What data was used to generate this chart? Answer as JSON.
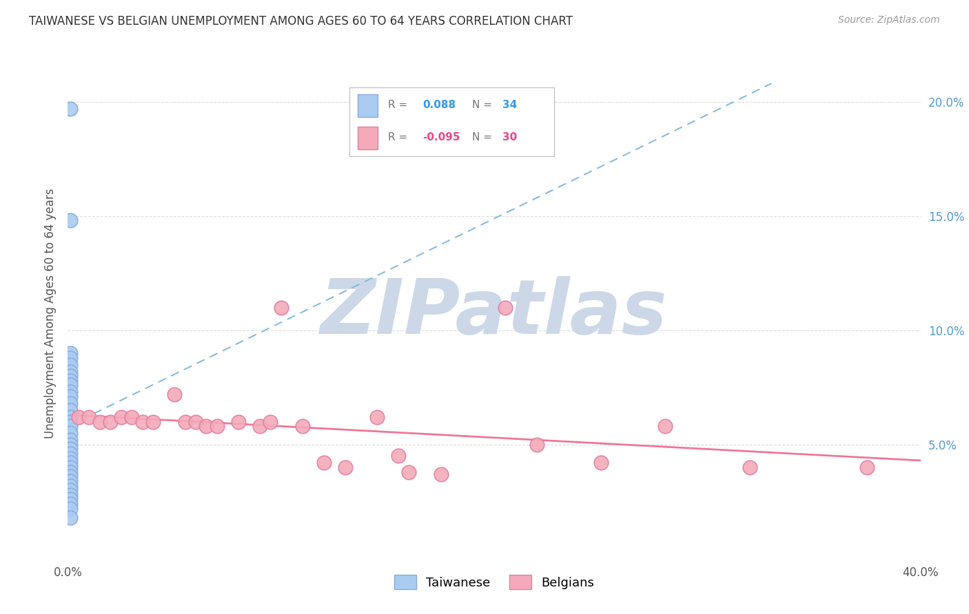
{
  "title": "TAIWANESE VS BELGIAN UNEMPLOYMENT AMONG AGES 60 TO 64 YEARS CORRELATION CHART",
  "source": "Source: ZipAtlas.com",
  "ylabel": "Unemployment Among Ages 60 to 64 years",
  "xlim": [
    0.0,
    0.4
  ],
  "ylim": [
    0.0,
    0.215
  ],
  "yticks": [
    0.0,
    0.05,
    0.1,
    0.15,
    0.2
  ],
  "ytick_labels": [
    "",
    "5.0%",
    "10.0%",
    "15.0%",
    "20.0%"
  ],
  "xticks": [
    0.0,
    0.05,
    0.1,
    0.15,
    0.2,
    0.25,
    0.3,
    0.35,
    0.4
  ],
  "xtick_labels": [
    "0.0%",
    "",
    "",
    "",
    "",
    "",
    "",
    "",
    "40.0%"
  ],
  "taiwanese_R": 0.088,
  "taiwanese_N": 34,
  "belgian_R": -0.095,
  "belgian_N": 30,
  "taiwanese_color": "#aaccf0",
  "taiwanese_edge": "#88aadd",
  "belgian_color": "#f4aabb",
  "belgian_edge": "#e080a0",
  "trend_blue_color": "#88bbdd",
  "trend_pink_color": "#ee7799",
  "background_color": "#ffffff",
  "grid_color": "#dddddd",
  "watermark_text": "ZIPatlas",
  "watermark_color": "#ccd8e8",
  "legend_R_blue": "0.088",
  "legend_N_blue": "34",
  "legend_R_pink": "-0.095",
  "legend_N_pink": "30",
  "taiwanese_x": [
    0.001,
    0.001,
    0.001,
    0.001,
    0.001,
    0.001,
    0.001,
    0.001,
    0.001,
    0.001,
    0.001,
    0.001,
    0.001,
    0.001,
    0.001,
    0.001,
    0.001,
    0.001,
    0.001,
    0.001,
    0.001,
    0.001,
    0.001,
    0.001,
    0.001,
    0.001,
    0.001,
    0.001,
    0.001,
    0.001,
    0.001,
    0.001,
    0.001,
    0.001
  ],
  "taiwanese_y": [
    0.197,
    0.148,
    0.09,
    0.088,
    0.085,
    0.082,
    0.08,
    0.078,
    0.076,
    0.073,
    0.071,
    0.068,
    0.065,
    0.062,
    0.06,
    0.058,
    0.055,
    0.052,
    0.05,
    0.048,
    0.046,
    0.044,
    0.042,
    0.04,
    0.038,
    0.036,
    0.034,
    0.032,
    0.03,
    0.028,
    0.026,
    0.024,
    0.022,
    0.018
  ],
  "belgian_x": [
    0.005,
    0.01,
    0.015,
    0.02,
    0.025,
    0.03,
    0.035,
    0.04,
    0.05,
    0.055,
    0.06,
    0.065,
    0.07,
    0.08,
    0.09,
    0.095,
    0.1,
    0.11,
    0.12,
    0.13,
    0.145,
    0.155,
    0.16,
    0.175,
    0.205,
    0.22,
    0.25,
    0.28,
    0.32,
    0.375
  ],
  "belgian_y": [
    0.062,
    0.062,
    0.06,
    0.06,
    0.062,
    0.062,
    0.06,
    0.06,
    0.072,
    0.06,
    0.06,
    0.058,
    0.058,
    0.06,
    0.058,
    0.06,
    0.11,
    0.058,
    0.042,
    0.04,
    0.062,
    0.045,
    0.038,
    0.037,
    0.11,
    0.05,
    0.042,
    0.058,
    0.04,
    0.04
  ],
  "blue_trend_x0": 0.0,
  "blue_trend_y0": 0.058,
  "blue_trend_x1": 0.33,
  "blue_trend_y1": 0.208,
  "pink_trend_x0": 0.0,
  "pink_trend_y0": 0.063,
  "pink_trend_x1": 0.4,
  "pink_trend_y1": 0.043
}
